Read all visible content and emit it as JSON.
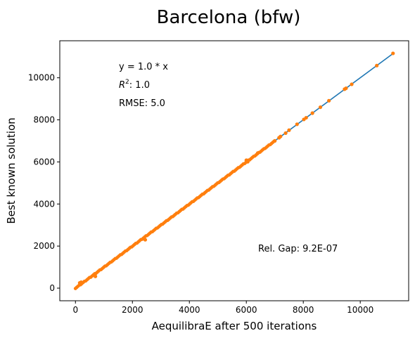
{
  "chart_data": {
    "type": "scatter",
    "title": "Barcelona (bfw)",
    "xlabel": "AequilibraE after 500 iterations",
    "ylabel": "Best known solution",
    "xlim": [
      -550,
      11700
    ],
    "ylim": [
      -600,
      11760
    ],
    "xticks": [
      0,
      2000,
      4000,
      6000,
      8000,
      10000
    ],
    "yticks": [
      0,
      2000,
      4000,
      6000,
      8000,
      10000
    ],
    "grid": false,
    "annotations": {
      "equation": "y = 1.0 * x",
      "r2_label": "R",
      "r2_sup": "2",
      "r2_value": ":  1.0",
      "rmse": "RMSE: 5.0",
      "gap": "Rel. Gap: 9.2E-07"
    },
    "fit_line": {
      "x": [
        0,
        11150
      ],
      "y": [
        0,
        11150
      ],
      "color": "#1f77b4"
    },
    "points_color": "#ff7f0e",
    "points_dense_range": [
      0,
      7000
    ],
    "points_extra": [
      [
        7000,
        7000
      ],
      [
        7150,
        7150
      ],
      [
        7200,
        7210
      ],
      [
        7380,
        7370
      ],
      [
        7500,
        7510
      ],
      [
        7780,
        7790
      ],
      [
        8020,
        8020
      ],
      [
        8100,
        8100
      ],
      [
        8320,
        8320
      ],
      [
        8600,
        8600
      ],
      [
        8900,
        8910
      ],
      [
        9450,
        9460
      ],
      [
        9500,
        9500
      ],
      [
        9700,
        9690
      ],
      [
        10580,
        10580
      ],
      [
        11150,
        11160
      ],
      [
        150,
        250
      ],
      [
        200,
        280
      ],
      [
        700,
        560
      ],
      [
        2450,
        2300
      ],
      [
        6000,
        6080
      ],
      [
        6050,
        6010
      ],
      [
        6400,
        6420
      ]
    ]
  }
}
